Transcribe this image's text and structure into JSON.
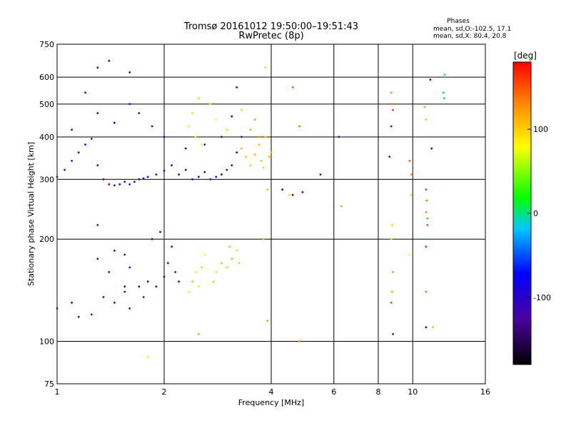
{
  "chart_data": {
    "type": "scatter",
    "title": "Tromsø 20161012 19:50:00–19:51:43",
    "subtitle": "RwPretec (8p)",
    "xlabel": "Frequency [MHz]",
    "ylabel": "Stationary phase Virtual Height [km]",
    "x_scale": "log",
    "y_scale": "log",
    "xlim": [
      1,
      16
    ],
    "ylim": [
      75,
      750
    ],
    "x_ticks": [
      "1",
      "2",
      "4",
      "6",
      "8",
      "10",
      "16"
    ],
    "x_tick_values": [
      1,
      2,
      4,
      6,
      8,
      10,
      16
    ],
    "y_ticks": [
      "75",
      "100",
      "200",
      "300",
      "400",
      "500",
      "600",
      "750"
    ],
    "y_tick_values": [
      75,
      100,
      200,
      300,
      400,
      500,
      600,
      750
    ],
    "grid": true,
    "stats": {
      "title": "Phases",
      "line1": "mean, sd,O:-102.5, 17.1",
      "line2": "mean, sd,X:  80.4, 20.8"
    },
    "colorbar": {
      "label": "[deg]",
      "range": [
        -180,
        180
      ],
      "ticks": [
        "100",
        "0",
        "-100"
      ],
      "tick_values": [
        100,
        0,
        -100
      ]
    },
    "series": [
      {
        "points": [
          [
            1.0,
            305,
            -115
          ],
          [
            1.05,
            320,
            -110
          ],
          [
            1.1,
            340,
            -112
          ],
          [
            1.15,
            360,
            -118
          ],
          [
            1.2,
            380,
            -110
          ],
          [
            1.25,
            395,
            -105
          ],
          [
            1.3,
            330,
            -108
          ],
          [
            1.35,
            300,
            -120
          ],
          [
            1.4,
            290,
            -125
          ],
          [
            1.45,
            288,
            -118
          ],
          [
            1.5,
            290,
            -115
          ],
          [
            1.55,
            295,
            -110
          ],
          [
            1.6,
            290,
            -112
          ],
          [
            1.65,
            295,
            -108
          ],
          [
            1.7,
            300,
            -105
          ],
          [
            1.75,
            302,
            -110
          ],
          [
            1.8,
            305,
            -100
          ],
          [
            1.9,
            310,
            -105
          ],
          [
            2.0,
            318,
            -95
          ],
          [
            2.1,
            330,
            -100
          ],
          [
            2.2,
            310,
            -90
          ],
          [
            2.3,
            320,
            -85
          ],
          [
            2.4,
            300,
            -95
          ],
          [
            2.5,
            305,
            -80
          ],
          [
            2.6,
            315,
            -100
          ],
          [
            2.7,
            300,
            -95
          ],
          [
            2.8,
            305,
            -90
          ],
          [
            2.9,
            310,
            -85
          ],
          [
            3.0,
            320,
            -95
          ],
          [
            3.1,
            330,
            -120
          ],
          [
            3.2,
            360,
            -115
          ],
          [
            3.3,
            400,
            -120
          ],
          [
            1.3,
            640,
            -105
          ],
          [
            1.4,
            670,
            -100
          ],
          [
            1.6,
            620,
            -90
          ],
          [
            1.2,
            540,
            -110
          ],
          [
            1.1,
            420,
            -105
          ],
          [
            1.3,
            470,
            -95
          ],
          [
            1.45,
            440,
            -105
          ],
          [
            1.6,
            500,
            -100
          ],
          [
            1.7,
            470,
            -95
          ],
          [
            1.85,
            430,
            -100
          ],
          [
            2.0,
            400,
            -90
          ],
          [
            2.3,
            370,
            -95
          ],
          [
            2.6,
            380,
            -100
          ],
          [
            2.9,
            400,
            -120
          ],
          [
            3.1,
            460,
            -115
          ],
          [
            3.2,
            560,
            -110
          ],
          [
            4.3,
            280,
            -120
          ],
          [
            4.6,
            270,
            -130
          ],
          [
            4.9,
            275,
            -115
          ],
          [
            5.5,
            310,
            -120
          ],
          [
            1.0,
            125,
            -120
          ],
          [
            1.1,
            130,
            -125
          ],
          [
            1.15,
            118,
            -130
          ],
          [
            1.25,
            120,
            -125
          ],
          [
            1.35,
            135,
            -118
          ],
          [
            1.45,
            130,
            -120
          ],
          [
            1.55,
            140,
            -115
          ],
          [
            1.6,
            125,
            -125
          ],
          [
            1.7,
            145,
            -110
          ],
          [
            1.75,
            135,
            -115
          ],
          [
            1.8,
            150,
            -112
          ],
          [
            1.9,
            145,
            -118
          ],
          [
            2.0,
            155,
            -115
          ],
          [
            2.05,
            170,
            -110
          ],
          [
            2.1,
            190,
            -120
          ],
          [
            2.15,
            160,
            -115
          ],
          [
            2.2,
            150,
            -125
          ],
          [
            1.3,
            175,
            -110
          ],
          [
            1.4,
            160,
            -115
          ],
          [
            1.45,
            185,
            -105
          ],
          [
            1.55,
            180,
            -110
          ],
          [
            1.6,
            165,
            -108
          ],
          [
            1.85,
            200,
            -112
          ],
          [
            1.95,
            210,
            -118
          ],
          [
            1.3,
            220,
            -100
          ],
          [
            1.55,
            145,
            -80
          ],
          [
            6.2,
            400,
            -90
          ],
          [
            8.7,
            430,
            -110
          ],
          [
            8.8,
            105,
            -120
          ],
          [
            10.9,
            110,
            -110
          ],
          [
            11.2,
            590,
            -90
          ],
          [
            11.3,
            370,
            -105
          ],
          [
            8.6,
            350,
            -100
          ]
        ]
      },
      {
        "points": [
          [
            2.35,
            140,
            60
          ],
          [
            2.4,
            150,
            55
          ],
          [
            2.45,
            160,
            65
          ],
          [
            2.5,
            145,
            70
          ],
          [
            2.55,
            165,
            60
          ],
          [
            2.6,
            180,
            75
          ],
          [
            2.75,
            150,
            50
          ],
          [
            2.8,
            160,
            60
          ],
          [
            2.9,
            170,
            45
          ],
          [
            3.0,
            165,
            55
          ],
          [
            3.05,
            190,
            50
          ],
          [
            3.1,
            175,
            40
          ],
          [
            3.2,
            185,
            60
          ],
          [
            3.25,
            170,
            55
          ],
          [
            2.35,
            430,
            90
          ],
          [
            2.4,
            470,
            95
          ],
          [
            2.5,
            520,
            100
          ],
          [
            2.45,
            400,
            85
          ],
          [
            2.55,
            380,
            80
          ],
          [
            2.7,
            500,
            90
          ],
          [
            2.8,
            450,
            85
          ],
          [
            3.0,
            420,
            95
          ],
          [
            3.3,
            480,
            100
          ],
          [
            3.3,
            370,
            110
          ],
          [
            3.4,
            350,
            105
          ],
          [
            3.5,
            330,
            100
          ],
          [
            3.6,
            355,
            115
          ],
          [
            3.7,
            380,
            110
          ],
          [
            3.75,
            340,
            105
          ],
          [
            3.8,
            325,
            100
          ],
          [
            3.85,
            400,
            110
          ],
          [
            3.95,
            350,
            108
          ],
          [
            4.0,
            360,
            115
          ],
          [
            3.5,
            420,
            120
          ],
          [
            3.6,
            450,
            125
          ],
          [
            3.7,
            400,
            130
          ],
          [
            3.85,
            640,
            95
          ],
          [
            3.9,
            280,
            110
          ],
          [
            4.5,
            270,
            100
          ],
          [
            3.8,
            200,
            115
          ],
          [
            4.6,
            560,
            150
          ],
          [
            4.8,
            430,
            140
          ],
          [
            6.3,
            250,
            120
          ],
          [
            2.5,
            105,
            120
          ],
          [
            1.8,
            90,
            70
          ],
          [
            3.9,
            115,
            120
          ],
          [
            4.8,
            100,
            130
          ],
          [
            8.7,
            540,
            30
          ],
          [
            8.75,
            500,
            140
          ],
          [
            8.8,
            480,
            160
          ],
          [
            8.75,
            220,
            100
          ],
          [
            8.7,
            200,
            60
          ],
          [
            8.8,
            160,
            130
          ],
          [
            8.75,
            140,
            120
          ],
          [
            8.7,
            130,
            150
          ],
          [
            9.8,
            340,
            150
          ],
          [
            9.9,
            310,
            120
          ],
          [
            9.9,
            270,
            60
          ],
          [
            9.8,
            180,
            80
          ],
          [
            10.8,
            490,
            120
          ],
          [
            10.9,
            450,
            110
          ],
          [
            10.9,
            280,
            160
          ],
          [
            10.95,
            260,
            140
          ],
          [
            11.0,
            230,
            20
          ],
          [
            10.9,
            240,
            130
          ],
          [
            11.0,
            220,
            160
          ],
          [
            10.9,
            190,
            170
          ],
          [
            10.9,
            140,
            140
          ],
          [
            11.4,
            110,
            110
          ],
          [
            12.3,
            610,
            10
          ],
          [
            12.2,
            540,
            -20
          ],
          [
            12.25,
            520,
            0
          ]
        ]
      }
    ]
  }
}
